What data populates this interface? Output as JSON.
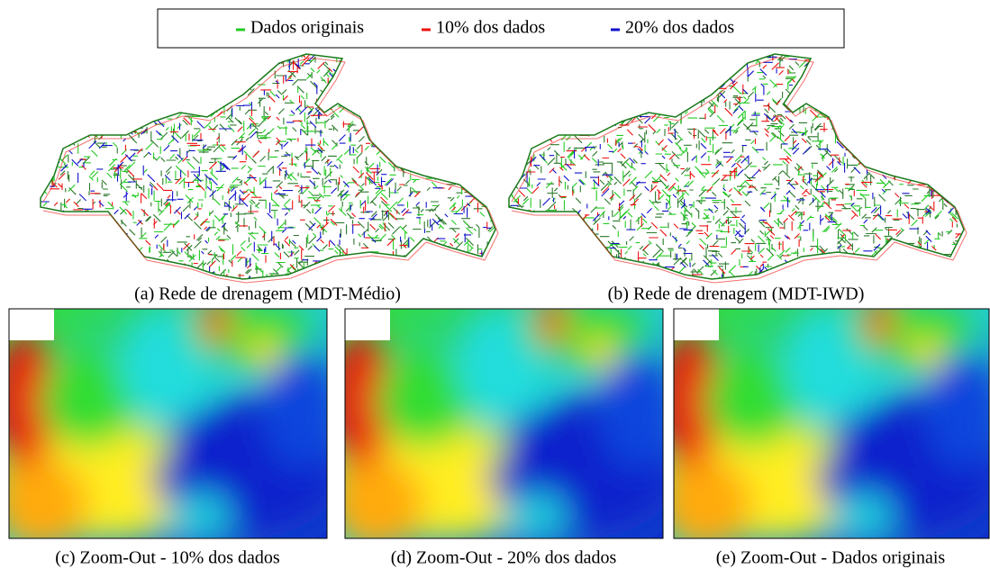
{
  "legend": {
    "items": [
      {
        "label": "Dados originais",
        "color": "#22cc22"
      },
      {
        "label": "10% dos dados",
        "color": "#ee1111"
      },
      {
        "label": "20% dos dados",
        "color": "#1111cc"
      }
    ]
  },
  "captions": {
    "a": "(a) Rede de drenagem (MDT-Médio)",
    "b": "(b) Rede de drenagem (MDT-IWD)",
    "c": "(c) Zoom-Out - 10% dos dados",
    "d": "(d) Zoom-Out - 20% dos dados",
    "e": "(e) Zoom-Out - Dados originais"
  }
}
